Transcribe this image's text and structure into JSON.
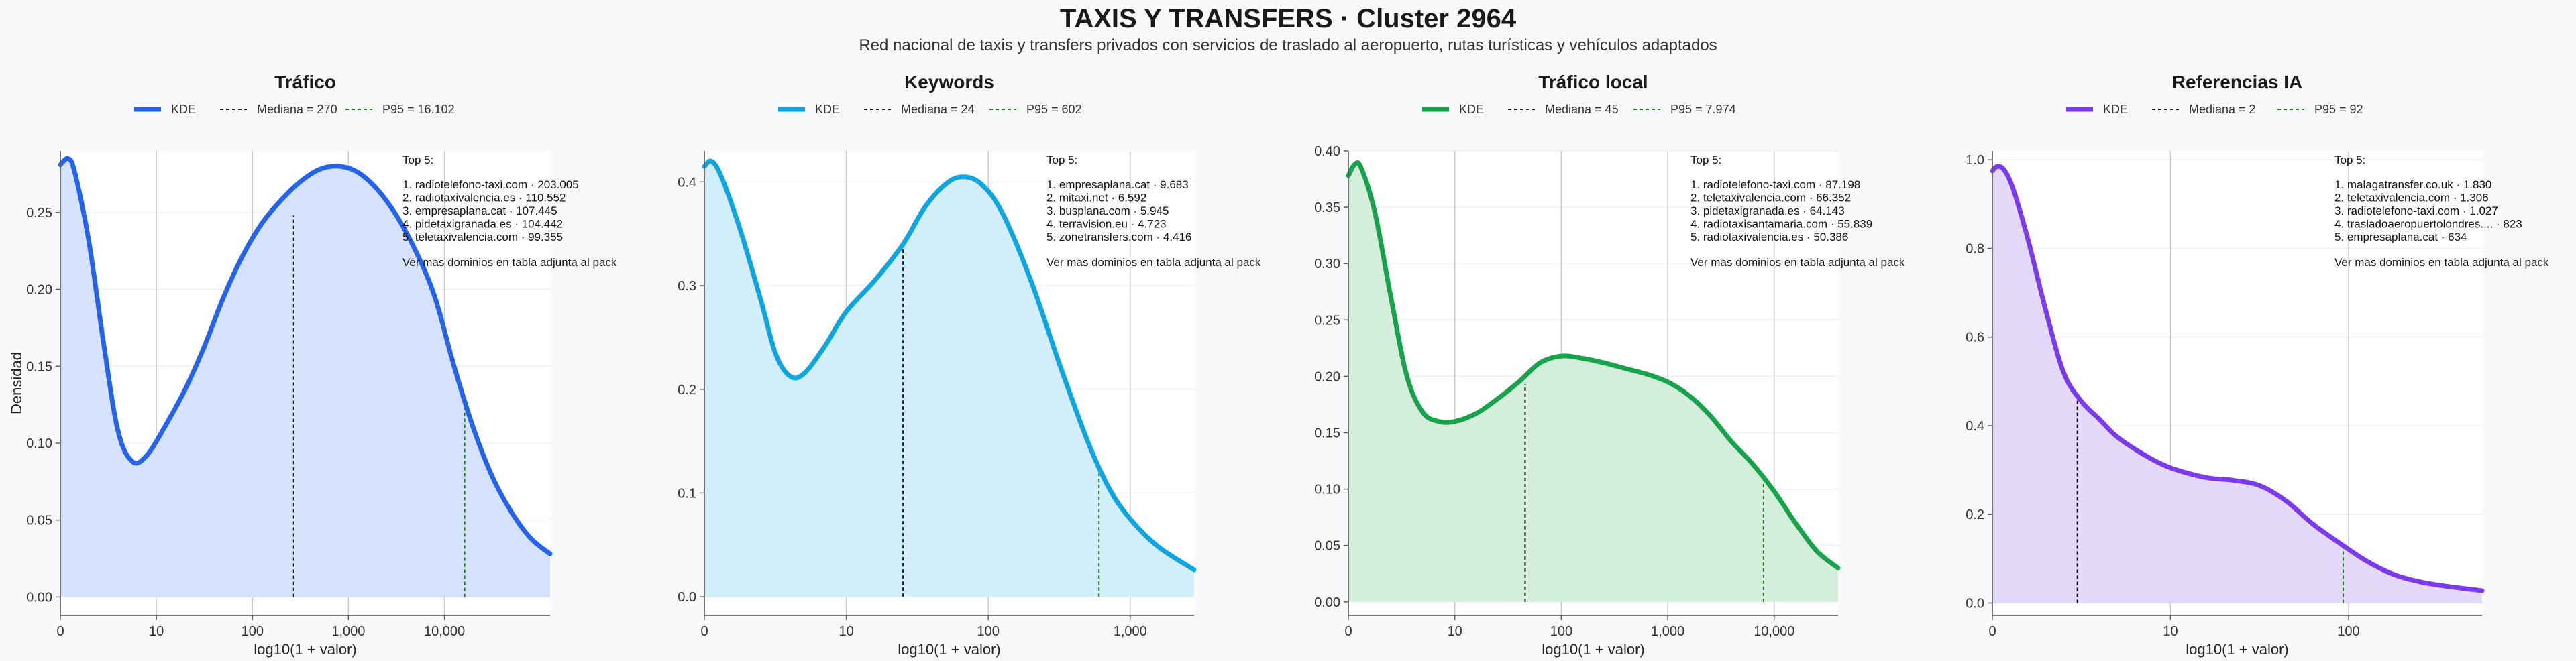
{
  "title": "TAXIS Y TRANSFERS · Cluster 2964",
  "subtitle": "Red nacional de taxis y transfers privados con servicios de traslado al aeropuerto, rutas turísticas y vehículos adaptados",
  "ylabel": "Densidad",
  "footer_note": "Ver mas dominios en tabla adjunta al pack",
  "top_label": "Top 5:",
  "legend_kde": "KDE",
  "chart_data": [
    {
      "type": "area",
      "title": "Tráfico",
      "color": "#2563eb",
      "fill": "#d6e2fb",
      "xlabel": "log10(1 + valor)",
      "xlim": [
        0,
        5.1
      ],
      "ylim": [
        -0.012,
        0.29
      ],
      "x_ticks": [
        {
          "v": 0,
          "label": "0"
        },
        {
          "v": 1,
          "label": "10"
        },
        {
          "v": 2,
          "label": "100"
        },
        {
          "v": 3,
          "label": "1,000"
        },
        {
          "v": 4,
          "label": "10,000"
        }
      ],
      "y_ticks": [
        {
          "v": 0,
          "label": "0.00"
        },
        {
          "v": 0.05,
          "label": "0.05"
        },
        {
          "v": 0.1,
          "label": "0.10"
        },
        {
          "v": 0.15,
          "label": "0.15"
        },
        {
          "v": 0.2,
          "label": "0.20"
        },
        {
          "v": 0.25,
          "label": "0.25"
        }
      ],
      "median": {
        "x": 2.43,
        "y": 0.248,
        "label": "Mediana = 270"
      },
      "p95": {
        "x": 4.21,
        "y": 0.13,
        "label": "P95 = 16.102"
      },
      "kde": [
        [
          0,
          0.281
        ],
        [
          0.08,
          0.285
        ],
        [
          0.15,
          0.276
        ],
        [
          0.3,
          0.23
        ],
        [
          0.45,
          0.165
        ],
        [
          0.6,
          0.108
        ],
        [
          0.75,
          0.088
        ],
        [
          0.9,
          0.092
        ],
        [
          1.1,
          0.112
        ],
        [
          1.3,
          0.135
        ],
        [
          1.5,
          0.163
        ],
        [
          1.7,
          0.195
        ],
        [
          1.9,
          0.222
        ],
        [
          2.1,
          0.243
        ],
        [
          2.3,
          0.258
        ],
        [
          2.5,
          0.27
        ],
        [
          2.7,
          0.278
        ],
        [
          2.9,
          0.28
        ],
        [
          3.1,
          0.276
        ],
        [
          3.3,
          0.265
        ],
        [
          3.5,
          0.248
        ],
        [
          3.7,
          0.225
        ],
        [
          3.9,
          0.195
        ],
        [
          4.1,
          0.15
        ],
        [
          4.3,
          0.11
        ],
        [
          4.5,
          0.078
        ],
        [
          4.7,
          0.055
        ],
        [
          4.9,
          0.038
        ],
        [
          5.1,
          0.028
        ]
      ],
      "top5": [
        "1. radiotelefono-taxi.com · 203.005",
        "2. radiotaxivalencia.es · 110.552",
        "3. empresaplana.cat · 107.445",
        "4. pidetaxigranada.es · 104.442",
        "5. teletaxivalencia.com · 99.355"
      ]
    },
    {
      "type": "area",
      "title": "Keywords",
      "color": "#0ea5e0",
      "fill": "#d2eefa",
      "xlabel": "log10(1 + valor)",
      "xlim": [
        0,
        3.45
      ],
      "ylim": [
        -0.018,
        0.43
      ],
      "x_ticks": [
        {
          "v": 0,
          "label": "0"
        },
        {
          "v": 1,
          "label": "10"
        },
        {
          "v": 2,
          "label": "100"
        },
        {
          "v": 3,
          "label": "1,000"
        }
      ],
      "y_ticks": [
        {
          "v": 0,
          "label": "0.0"
        },
        {
          "v": 0.1,
          "label": "0.1"
        },
        {
          "v": 0.2,
          "label": "0.2"
        },
        {
          "v": 0.3,
          "label": "0.3"
        },
        {
          "v": 0.4,
          "label": "0.4"
        }
      ],
      "median": {
        "x": 1.4,
        "y": 0.338,
        "label": "Mediana = 24"
      },
      "p95": {
        "x": 2.78,
        "y": 0.12,
        "label": "P95 = 602"
      },
      "kde": [
        [
          0,
          0.415
        ],
        [
          0.05,
          0.42
        ],
        [
          0.12,
          0.405
        ],
        [
          0.25,
          0.355
        ],
        [
          0.4,
          0.285
        ],
        [
          0.5,
          0.235
        ],
        [
          0.6,
          0.213
        ],
        [
          0.7,
          0.215
        ],
        [
          0.85,
          0.242
        ],
        [
          1.0,
          0.275
        ],
        [
          1.2,
          0.305
        ],
        [
          1.4,
          0.34
        ],
        [
          1.55,
          0.375
        ],
        [
          1.7,
          0.398
        ],
        [
          1.82,
          0.405
        ],
        [
          1.95,
          0.398
        ],
        [
          2.1,
          0.37
        ],
        [
          2.3,
          0.305
        ],
        [
          2.5,
          0.225
        ],
        [
          2.7,
          0.15
        ],
        [
          2.85,
          0.105
        ],
        [
          3.0,
          0.075
        ],
        [
          3.2,
          0.048
        ],
        [
          3.45,
          0.026
        ]
      ],
      "top5": [
        "1. empresaplana.cat · 9.683",
        "2. mitaxi.net · 6.592",
        "3. busplana.com · 5.945",
        "4. terravision.eu · 4.723",
        "5. zonetransfers.com · 4.416"
      ]
    },
    {
      "type": "area",
      "title": "Tráfico local",
      "color": "#16a34a",
      "fill": "#d3eedb",
      "xlabel": "log10(1 + valor)",
      "xlim": [
        0,
        4.6
      ],
      "ylim": [
        -0.012,
        0.4
      ],
      "x_ticks": [
        {
          "v": 0,
          "label": "0"
        },
        {
          "v": 1,
          "label": "10"
        },
        {
          "v": 2,
          "label": "100"
        },
        {
          "v": 3,
          "label": "1,000"
        },
        {
          "v": 4,
          "label": "10,000"
        }
      ],
      "y_ticks": [
        {
          "v": 0,
          "label": "0.00"
        },
        {
          "v": 0.05,
          "label": "0.05"
        },
        {
          "v": 0.1,
          "label": "0.10"
        },
        {
          "v": 0.15,
          "label": "0.15"
        },
        {
          "v": 0.2,
          "label": "0.20"
        },
        {
          "v": 0.25,
          "label": "0.25"
        },
        {
          "v": 0.3,
          "label": "0.30"
        },
        {
          "v": 0.35,
          "label": "0.35"
        },
        {
          "v": 0.4,
          "label": "0.40"
        }
      ],
      "median": {
        "x": 1.66,
        "y": 0.193,
        "label": "Mediana = 45"
      },
      "p95": {
        "x": 3.9,
        "y": 0.112,
        "label": "P95 = 7.974"
      },
      "kde": [
        [
          0,
          0.378
        ],
        [
          0.06,
          0.388
        ],
        [
          0.12,
          0.385
        ],
        [
          0.25,
          0.345
        ],
        [
          0.4,
          0.27
        ],
        [
          0.55,
          0.2
        ],
        [
          0.7,
          0.168
        ],
        [
          0.85,
          0.16
        ],
        [
          1.0,
          0.16
        ],
        [
          1.2,
          0.167
        ],
        [
          1.4,
          0.18
        ],
        [
          1.6,
          0.195
        ],
        [
          1.8,
          0.212
        ],
        [
          2.0,
          0.218
        ],
        [
          2.2,
          0.216
        ],
        [
          2.4,
          0.212
        ],
        [
          2.6,
          0.207
        ],
        [
          2.8,
          0.202
        ],
        [
          3.0,
          0.195
        ],
        [
          3.2,
          0.183
        ],
        [
          3.4,
          0.165
        ],
        [
          3.6,
          0.142
        ],
        [
          3.8,
          0.122
        ],
        [
          4.0,
          0.098
        ],
        [
          4.2,
          0.07
        ],
        [
          4.4,
          0.045
        ],
        [
          4.6,
          0.03
        ]
      ],
      "top5": [
        "1. radiotelefono-taxi.com · 87.198",
        "2. teletaxivalencia.com · 66.352",
        "3. pidetaxigranada.es · 64.143",
        "4. radiotaxisantamaria.com · 55.839",
        "5. radiotaxivalencia.es · 50.386"
      ]
    },
    {
      "type": "area",
      "title": "Referencias IA",
      "color": "#7c3aed",
      "fill": "#e4d9f8",
      "xlabel": "log10(1 + valor)",
      "xlim": [
        0,
        2.75
      ],
      "ylim": [
        -0.028,
        1.02
      ],
      "x_ticks": [
        {
          "v": 0,
          "label": "0"
        },
        {
          "v": 1,
          "label": "10"
        },
        {
          "v": 2,
          "label": "100"
        }
      ],
      "y_ticks": [
        {
          "v": 0,
          "label": "0.0"
        },
        {
          "v": 0.2,
          "label": "0.2"
        },
        {
          "v": 0.4,
          "label": "0.4"
        },
        {
          "v": 0.6,
          "label": "0.6"
        },
        {
          "v": 0.8,
          "label": "0.8"
        },
        {
          "v": 1.0,
          "label": "1.0"
        }
      ],
      "median": {
        "x": 0.477,
        "y": 0.465,
        "label": "Mediana = 2"
      },
      "p95": {
        "x": 1.97,
        "y": 0.13,
        "label": "P95 = 92"
      },
      "kde": [
        [
          0,
          0.975
        ],
        [
          0.03,
          0.985
        ],
        [
          0.07,
          0.975
        ],
        [
          0.12,
          0.93
        ],
        [
          0.2,
          0.82
        ],
        [
          0.3,
          0.66
        ],
        [
          0.4,
          0.52
        ],
        [
          0.5,
          0.455
        ],
        [
          0.6,
          0.415
        ],
        [
          0.7,
          0.375
        ],
        [
          0.85,
          0.335
        ],
        [
          1.0,
          0.305
        ],
        [
          1.2,
          0.283
        ],
        [
          1.35,
          0.277
        ],
        [
          1.5,
          0.265
        ],
        [
          1.65,
          0.23
        ],
        [
          1.8,
          0.178
        ],
        [
          1.95,
          0.135
        ],
        [
          2.1,
          0.095
        ],
        [
          2.25,
          0.065
        ],
        [
          2.4,
          0.048
        ],
        [
          2.55,
          0.038
        ],
        [
          2.75,
          0.028
        ]
      ],
      "top5": [
        "1. malagatransfer.co.uk · 1.830",
        "2. teletaxivalencia.com · 1.306",
        "3. radiotelefono-taxi.com · 1.027",
        "4. trasladoaeropuertolondres.... · 823",
        "5. empresaplana.cat · 634"
      ]
    }
  ]
}
